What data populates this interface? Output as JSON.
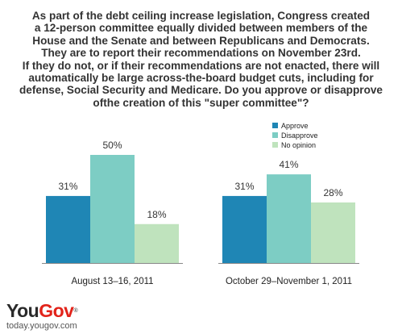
{
  "title_lines": [
    "As part of the debt ceiling increase legislation, Congress created",
    "a 12-person committee equally divided between members of the",
    "House and the Senate and between Republicans and Democrats.",
    "They are to report their recommendations on November 23rd.",
    "If they do not, or if their recommendations are not enacted, there will",
    "automatically be large across-the-board budget cuts, including for",
    "defense, Social Security and Medicare. Do you approve or disapprove",
    "ofthe creation of this \"super committee\"?"
  ],
  "brand": {
    "logo_main": "You",
    "logo_accent": "Gov",
    "trademark": "®",
    "url": "today.yougov.com"
  },
  "chart_data": {
    "type": "bar",
    "categories": [
      "August 13–16, 2011",
      "October 29–November 1, 2011"
    ],
    "series": [
      {
        "name": "Approve",
        "values": [
          31,
          31
        ],
        "color": "#1f86b5"
      },
      {
        "name": "Disapprove",
        "values": [
          50,
          41
        ],
        "color": "#7dcdc4"
      },
      {
        "name": "No opinion",
        "values": [
          18,
          28
        ],
        "color": "#bfe3bd"
      }
    ],
    "value_suffix": "%",
    "legend_position": "top-right",
    "ylim": [
      0,
      50
    ],
    "grid": false,
    "baseline_color": "#888888"
  }
}
